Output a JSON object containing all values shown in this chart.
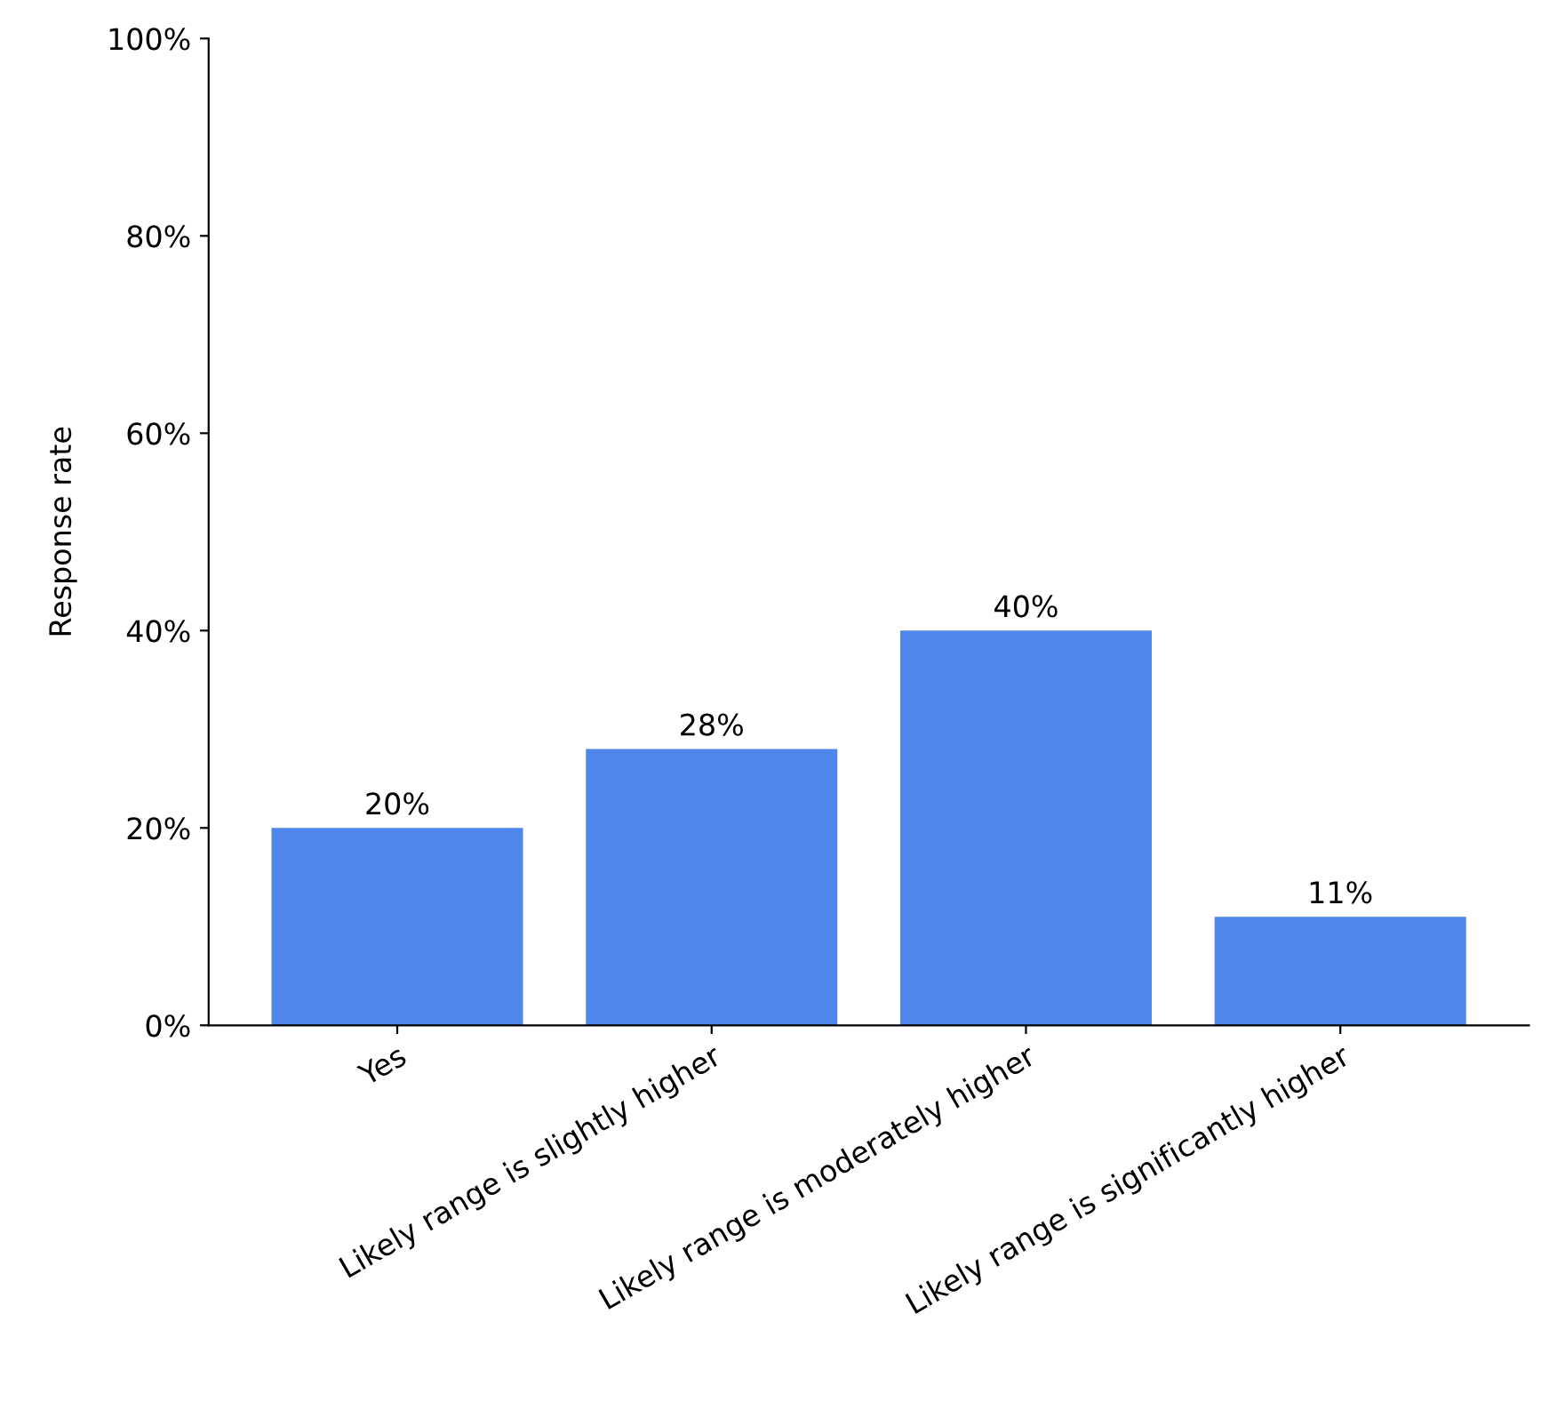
{
  "chart_data": {
    "type": "bar",
    "ylabel": "Response rate",
    "categories": [
      "Yes",
      "Likely range is slightly higher",
      "Likely range is moderately higher",
      "Likely range is significantly higher"
    ],
    "values": [
      20,
      28,
      40,
      11
    ],
    "value_labels": [
      "20%",
      "28%",
      "40%",
      "11%"
    ],
    "color": "#4f86ec",
    "ylim": [
      0,
      100
    ],
    "yticks": [
      {
        "value": 0,
        "label": "0%"
      },
      {
        "value": 20,
        "label": "20%"
      },
      {
        "value": 40,
        "label": "40%"
      },
      {
        "value": 60,
        "label": "60%"
      },
      {
        "value": 80,
        "label": "80%"
      },
      {
        "value": 100,
        "label": "100%"
      }
    ],
    "grid": false
  }
}
